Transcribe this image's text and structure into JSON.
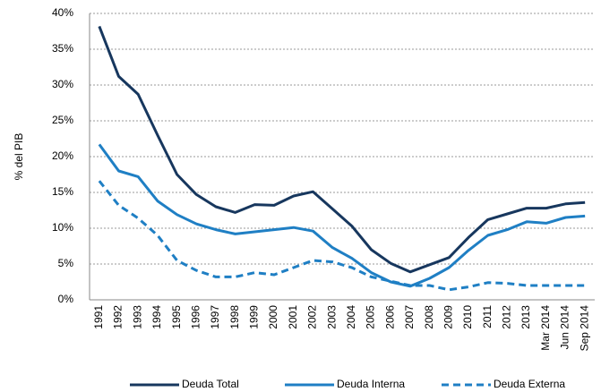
{
  "chart_data": {
    "type": "line",
    "y_label": "% del PIB",
    "categories": [
      "1991",
      "1992",
      "1993",
      "1994",
      "1995",
      "1996",
      "1997",
      "1998",
      "1999",
      "2000",
      "2001",
      "2002",
      "2003",
      "2004",
      "2005",
      "2006",
      "2007",
      "2008",
      "2009",
      "2010",
      "2011",
      "2012",
      "2013",
      "Mar 2014",
      "Jun 2014",
      "Sep 2014"
    ],
    "series": [
      {
        "name": "Deuda Total",
        "color": "#17375e",
        "dash": false,
        "values": [
          38.2,
          31.2,
          28.7,
          23,
          17.5,
          14.7,
          13,
          12.2,
          13.3,
          13.2,
          14.5,
          15.1,
          12.7,
          10.3,
          7,
          5.1,
          3.9,
          4.9,
          5.9,
          8.7,
          11.2,
          12,
          12.8,
          12.8,
          13.4,
          13.6
        ]
      },
      {
        "name": "Deuda Interna",
        "color": "#1f7fc4",
        "dash": false,
        "values": [
          21.7,
          18,
          17.2,
          13.8,
          11.9,
          10.6,
          9.8,
          9.2,
          9.5,
          9.8,
          10.1,
          9.6,
          7.3,
          5.8,
          3.8,
          2.5,
          1.9,
          3,
          4.5,
          6.9,
          9,
          9.8,
          10.9,
          10.7,
          11.5,
          11.7
        ]
      },
      {
        "name": "Deuda Externa",
        "color": "#1f7fc4",
        "dash": true,
        "values": [
          16.6,
          13.2,
          11.4,
          9,
          5.5,
          4.1,
          3.2,
          3.2,
          3.8,
          3.5,
          4.5,
          5.5,
          5.3,
          4.5,
          3.2,
          2.6,
          2,
          2,
          1.4,
          1.8,
          2.4,
          2.3,
          2,
          2,
          2,
          2
        ]
      }
    ],
    "ylim": [
      0,
      40
    ],
    "yticks": [
      {
        "value": 0,
        "label": "0%"
      },
      {
        "value": 5,
        "label": "5%"
      },
      {
        "value": 10,
        "label": "10%"
      },
      {
        "value": 15,
        "label": "15%"
      },
      {
        "value": 20,
        "label": "20%"
      },
      {
        "value": 25,
        "label": "25%"
      },
      {
        "value": 30,
        "label": "30%"
      },
      {
        "value": 35,
        "label": "35%"
      },
      {
        "value": 40,
        "label": "40%"
      }
    ],
    "grid": true
  }
}
